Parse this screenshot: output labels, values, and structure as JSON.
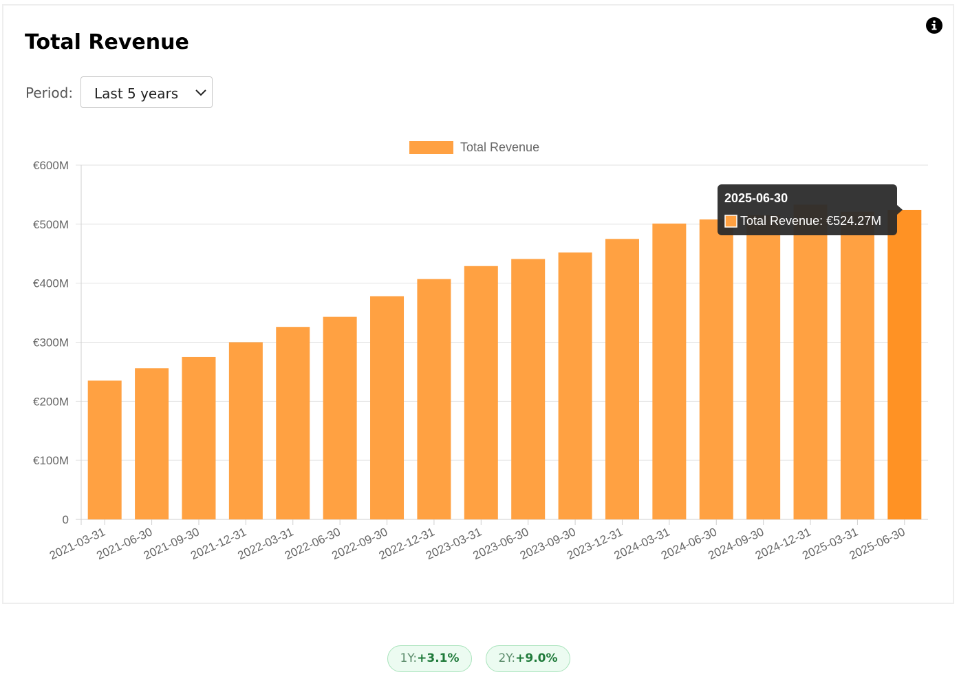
{
  "header": {
    "title": "Total Revenue",
    "info_icon": "info-icon"
  },
  "period": {
    "label": "Period:",
    "selected": "Last 5 years"
  },
  "colors": {
    "bar": "#ffa142",
    "bar_active": "#ff9224",
    "tooltip_bg": "#2b2b2b"
  },
  "chart_data": {
    "type": "bar",
    "title": "",
    "xlabel": "",
    "ylabel": "",
    "categories": [
      "2021-03-31",
      "2021-06-30",
      "2021-09-30",
      "2021-12-31",
      "2022-03-31",
      "2022-06-30",
      "2022-09-30",
      "2022-12-31",
      "2023-03-31",
      "2023-06-30",
      "2023-09-30",
      "2023-12-31",
      "2024-03-31",
      "2024-06-30",
      "2024-09-30",
      "2024-12-31",
      "2025-03-31",
      "2025-06-30"
    ],
    "series": [
      {
        "name": "Total Revenue",
        "values": [
          235,
          256,
          275,
          300,
          326,
          343,
          378,
          407,
          429,
          441,
          452,
          475,
          501,
          508,
          515,
          533,
          521,
          524.27
        ]
      }
    ],
    "ylim": [
      0,
      600
    ],
    "yticks": [
      {
        "value": 0,
        "label": "0"
      },
      {
        "value": 100,
        "label": "€100M"
      },
      {
        "value": 200,
        "label": "€200M"
      },
      {
        "value": 300,
        "label": "€300M"
      },
      {
        "value": 400,
        "label": "€400M"
      },
      {
        "value": 500,
        "label": "€500M"
      },
      {
        "value": 600,
        "label": "€600M"
      }
    ],
    "grid": true,
    "legend_position": "top",
    "tooltip": {
      "date": "2025-06-30",
      "text": "Total Revenue: €524.27M",
      "category_index": 17
    }
  },
  "badges": [
    {
      "label": "1Y:",
      "value": "+3.1%"
    },
    {
      "label": "2Y:",
      "value": "+9.0%"
    }
  ]
}
